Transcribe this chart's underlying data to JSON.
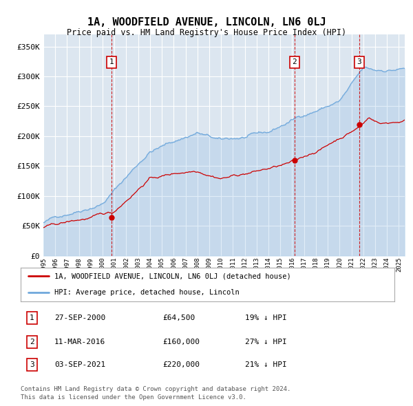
{
  "title": "1A, WOODFIELD AVENUE, LINCOLN, LN6 0LJ",
  "subtitle": "Price paid vs. HM Land Registry's House Price Index (HPI)",
  "ytick_values": [
    0,
    50000,
    100000,
    150000,
    200000,
    250000,
    300000,
    350000
  ],
  "ylim": [
    0,
    370000
  ],
  "xlim_start": 1995.0,
  "xlim_end": 2025.5,
  "sale_markers": [
    {
      "number": 1,
      "date": "27-SEP-2000",
      "price": 64500,
      "pct": "19% ↓ HPI",
      "x_year": 2000.75
    },
    {
      "number": 2,
      "date": "11-MAR-2016",
      "price": 160000,
      "pct": "27% ↓ HPI",
      "x_year": 2016.2
    },
    {
      "number": 3,
      "date": "03-SEP-2021",
      "price": 220000,
      "pct": "21% ↓ HPI",
      "x_year": 2021.67
    }
  ],
  "legend_line1": "1A, WOODFIELD AVENUE, LINCOLN, LN6 0LJ (detached house)",
  "legend_line2": "HPI: Average price, detached house, Lincoln",
  "footer1": "Contains HM Land Registry data © Crown copyright and database right 2024.",
  "footer2": "This data is licensed under the Open Government Licence v3.0.",
  "hpi_color": "#6fa8dc",
  "sale_color": "#cc0000",
  "plot_bg": "#dce6f0",
  "grid_color": "#ffffff",
  "marker_box_color": "#cc0000"
}
